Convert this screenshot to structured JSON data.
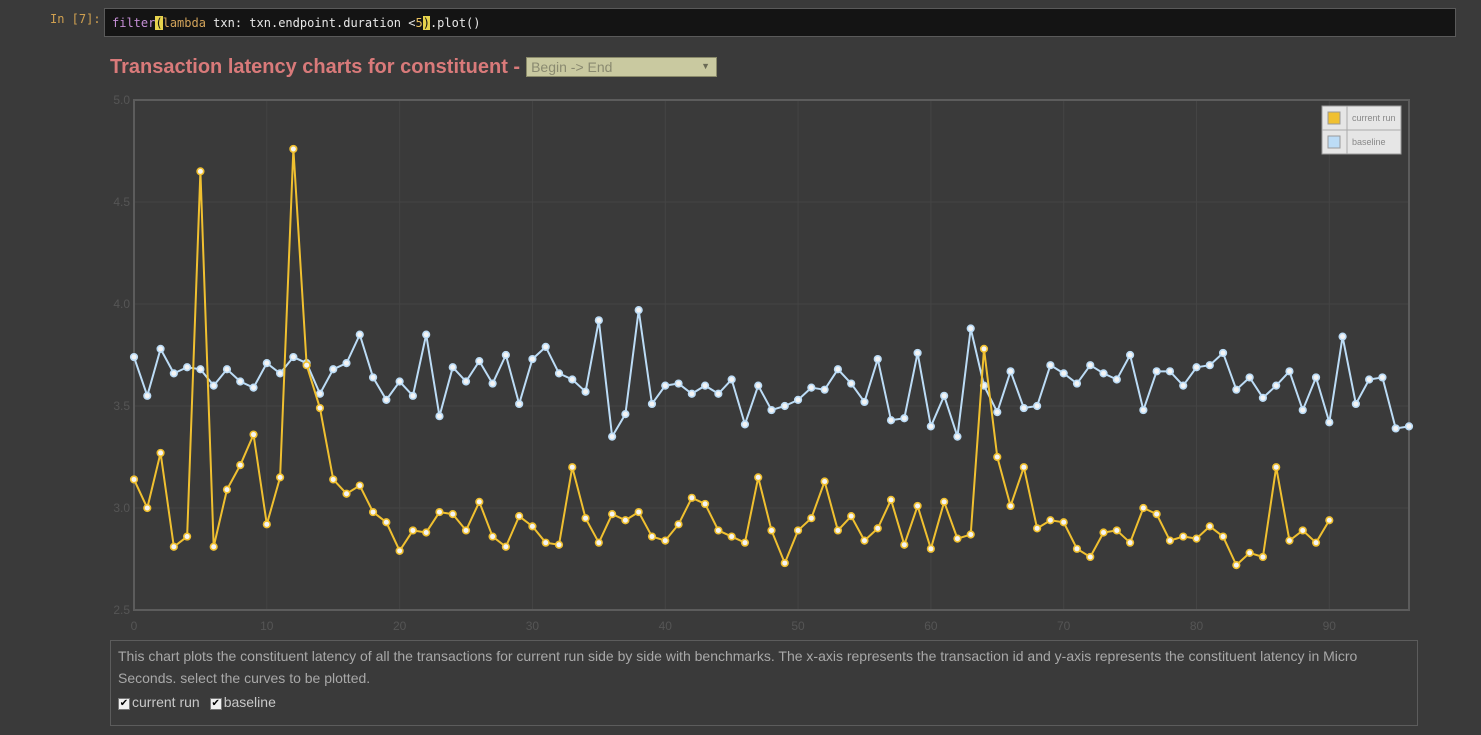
{
  "cell": {
    "prompt": "In [7]:",
    "code_pre": "filter",
    "code_paren": "(",
    "code_lambda": "lambda",
    "code_mid": " txn: txn.endpoint.duration <",
    "code_num": "5",
    "code_close": ")",
    "code_post": ".plot()"
  },
  "header": {
    "title": "Transaction latency charts for constituent -",
    "select_value": "Begin -> End"
  },
  "description": {
    "text": "This chart plots the constituent latency of all the transactions for current run side by side with benchmarks. The x-axis represents the transaction id and y-axis represents the constituent latency in Micro Seconds. select the curves to be plotted.",
    "checkboxes": [
      {
        "label": "current run",
        "checked": true
      },
      {
        "label": "baseline",
        "checked": true
      }
    ]
  },
  "colors": {
    "current_run": "#f0c030",
    "baseline": "#bcdcf6",
    "axis": "#606060",
    "grid": "#444444"
  },
  "chart_data": {
    "type": "line",
    "title": "",
    "xlabel": "",
    "ylabel": "",
    "xlim": [
      0,
      96
    ],
    "ylim": [
      2.5,
      5.0
    ],
    "xticks": [
      "0",
      "10",
      "20",
      "30",
      "40",
      "50",
      "60",
      "70",
      "80",
      "90"
    ],
    "yticks": [
      "2.5",
      "3.0",
      "3.5",
      "4.0",
      "4.5",
      "5.0"
    ],
    "grid": true,
    "legend_position": "top-right",
    "series": [
      {
        "name": "current run",
        "color": "#f0c030",
        "x": [
          0,
          1,
          2,
          3,
          4,
          5,
          6,
          7,
          8,
          9,
          10,
          11,
          12,
          13,
          14,
          15,
          16,
          17,
          18,
          19,
          20,
          21,
          22,
          23,
          24,
          25,
          26,
          27,
          28,
          29,
          30,
          31,
          32,
          33,
          34,
          35,
          36,
          37,
          38,
          39,
          40,
          41,
          42,
          43,
          44,
          45,
          46,
          47,
          48,
          49,
          50,
          51,
          52,
          53,
          54,
          55,
          56,
          57,
          58,
          59,
          60,
          61,
          62,
          63,
          64,
          65,
          66,
          67,
          68,
          69,
          70,
          71,
          72,
          73,
          74,
          75,
          76,
          77,
          78,
          79,
          80,
          81,
          82,
          83,
          84,
          85,
          86,
          87,
          88,
          89,
          90
        ],
        "values": [
          3.14,
          3.0,
          3.27,
          2.81,
          2.86,
          4.65,
          2.81,
          3.09,
          3.21,
          3.36,
          2.92,
          3.15,
          4.76,
          3.7,
          3.49,
          3.14,
          3.07,
          3.11,
          2.98,
          2.93,
          2.79,
          2.89,
          2.88,
          2.98,
          2.97,
          2.89,
          3.03,
          2.86,
          2.81,
          2.96,
          2.91,
          2.83,
          2.82,
          3.2,
          2.95,
          2.83,
          2.97,
          2.94,
          2.98,
          2.86,
          2.84,
          2.92,
          3.05,
          3.02,
          2.89,
          2.86,
          2.83,
          3.15,
          2.89,
          2.73,
          2.89,
          2.95,
          3.13,
          2.89,
          2.96,
          2.84,
          2.9,
          3.04,
          2.82,
          3.01,
          2.8,
          3.03,
          2.85,
          2.87,
          3.78,
          3.25,
          3.01,
          3.2,
          2.9,
          2.94,
          2.93,
          2.8,
          2.76,
          2.88,
          2.89,
          2.83,
          3.0,
          2.97,
          2.84,
          2.86,
          2.85,
          2.91,
          2.86,
          2.72,
          2.78,
          2.76,
          3.2,
          2.84,
          2.89,
          2.83,
          2.94
        ]
      },
      {
        "name": "baseline",
        "color": "#bcdcf6",
        "x": [
          0,
          1,
          2,
          3,
          4,
          5,
          6,
          7,
          8,
          9,
          10,
          11,
          12,
          13,
          14,
          15,
          16,
          17,
          18,
          19,
          20,
          21,
          22,
          23,
          24,
          25,
          26,
          27,
          28,
          29,
          30,
          31,
          32,
          33,
          34,
          35,
          36,
          37,
          38,
          39,
          40,
          41,
          42,
          43,
          44,
          45,
          46,
          47,
          48,
          49,
          50,
          51,
          52,
          53,
          54,
          55,
          56,
          57,
          58,
          59,
          60,
          61,
          62,
          63,
          64,
          65,
          66,
          67,
          68,
          69,
          70,
          71,
          72,
          73,
          74,
          75,
          76,
          77,
          78,
          79,
          80,
          81,
          82,
          83,
          84,
          85,
          86,
          87,
          88,
          89,
          90,
          91,
          92,
          93,
          94,
          95,
          96
        ],
        "values": [
          3.74,
          3.55,
          3.78,
          3.66,
          3.69,
          3.68,
          3.6,
          3.68,
          3.62,
          3.59,
          3.71,
          3.66,
          3.74,
          3.71,
          3.56,
          3.68,
          3.71,
          3.85,
          3.64,
          3.53,
          3.62,
          3.55,
          3.85,
          3.45,
          3.69,
          3.62,
          3.72,
          3.61,
          3.75,
          3.51,
          3.73,
          3.79,
          3.66,
          3.63,
          3.57,
          3.92,
          3.35,
          3.46,
          3.97,
          3.51,
          3.6,
          3.61,
          3.56,
          3.6,
          3.56,
          3.63,
          3.41,
          3.6,
          3.48,
          3.5,
          3.53,
          3.59,
          3.58,
          3.68,
          3.61,
          3.52,
          3.73,
          3.43,
          3.44,
          3.76,
          3.4,
          3.55,
          3.35,
          3.88,
          3.6,
          3.47,
          3.67,
          3.49,
          3.5,
          3.7,
          3.66,
          3.61,
          3.7,
          3.66,
          3.63,
          3.75,
          3.48,
          3.67,
          3.67,
          3.6,
          3.69,
          3.7,
          3.76,
          3.58,
          3.64,
          3.54,
          3.6,
          3.67,
          3.48,
          3.64,
          3.42,
          3.84,
          3.51,
          3.63,
          3.64,
          3.39,
          3.4
        ]
      }
    ]
  }
}
